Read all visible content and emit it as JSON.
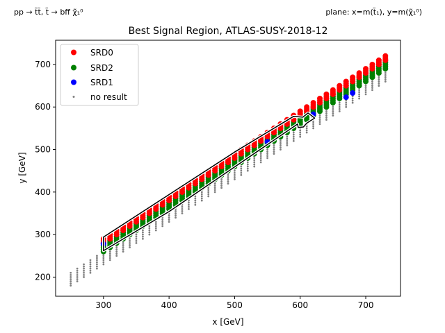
{
  "header": {
    "process_label": "pp → t̃t̃, t̃ → bff χ̃₁⁰",
    "plane_label": "plane: x=m(t̃₁), y=m(χ̃₁⁰)"
  },
  "chart_data": {
    "type": "scatter",
    "title": "Best Signal Region, ATLAS-SUSY-2018-12",
    "xlabel": "x [GeV]",
    "ylabel": "y [GeV]",
    "xlim": [
      227,
      753
    ],
    "ylim": [
      155,
      757
    ],
    "xticks": [
      300,
      400,
      500,
      600,
      700
    ],
    "yticks": [
      200,
      300,
      400,
      500,
      600,
      700
    ],
    "grid": false,
    "legend_position": "top-left",
    "series": [
      {
        "name": "SRD0",
        "color": "#ff0000",
        "marker": "circle"
      },
      {
        "name": "SRD2",
        "color": "#008000",
        "marker": "circle"
      },
      {
        "name": "SRD1",
        "color": "#0000ff",
        "marker": "circle"
      },
      {
        "name": "no result",
        "color": "#808080",
        "marker": "small-dot"
      }
    ],
    "grid_points": {
      "x_start": 250,
      "x_end": 730,
      "x_step": 10,
      "y_step": 5,
      "dm_min": 20,
      "dm_max": 70,
      "low_x_region": {
        "x_max": 290,
        "dm_min": 40,
        "dm_max": 70
      },
      "no_result_band_dm": [
        20,
        90
      ],
      "srd0_dm_min": 42,
      "srd2_dm_range": [
        24,
        42
      ]
    },
    "srd1_points": [
      {
        "x": 300,
        "y": 278
      },
      {
        "x": 550,
        "y": 518
      },
      {
        "x": 620,
        "y": 583
      },
      {
        "x": 670,
        "y": 623
      },
      {
        "x": 680,
        "y": 633
      }
    ],
    "contour": {
      "color": "#000000",
      "points": [
        [
          300,
          294
        ],
        [
          400,
          394
        ],
        [
          500,
          494
        ],
        [
          590,
          578
        ],
        [
          604,
          576
        ],
        [
          612,
          586
        ],
        [
          622,
          574
        ],
        [
          610,
          562
        ],
        [
          605,
          553
        ],
        [
          597,
          552
        ],
        [
          596,
          560
        ],
        [
          400,
          354
        ],
        [
          300,
          262
        ]
      ]
    }
  }
}
